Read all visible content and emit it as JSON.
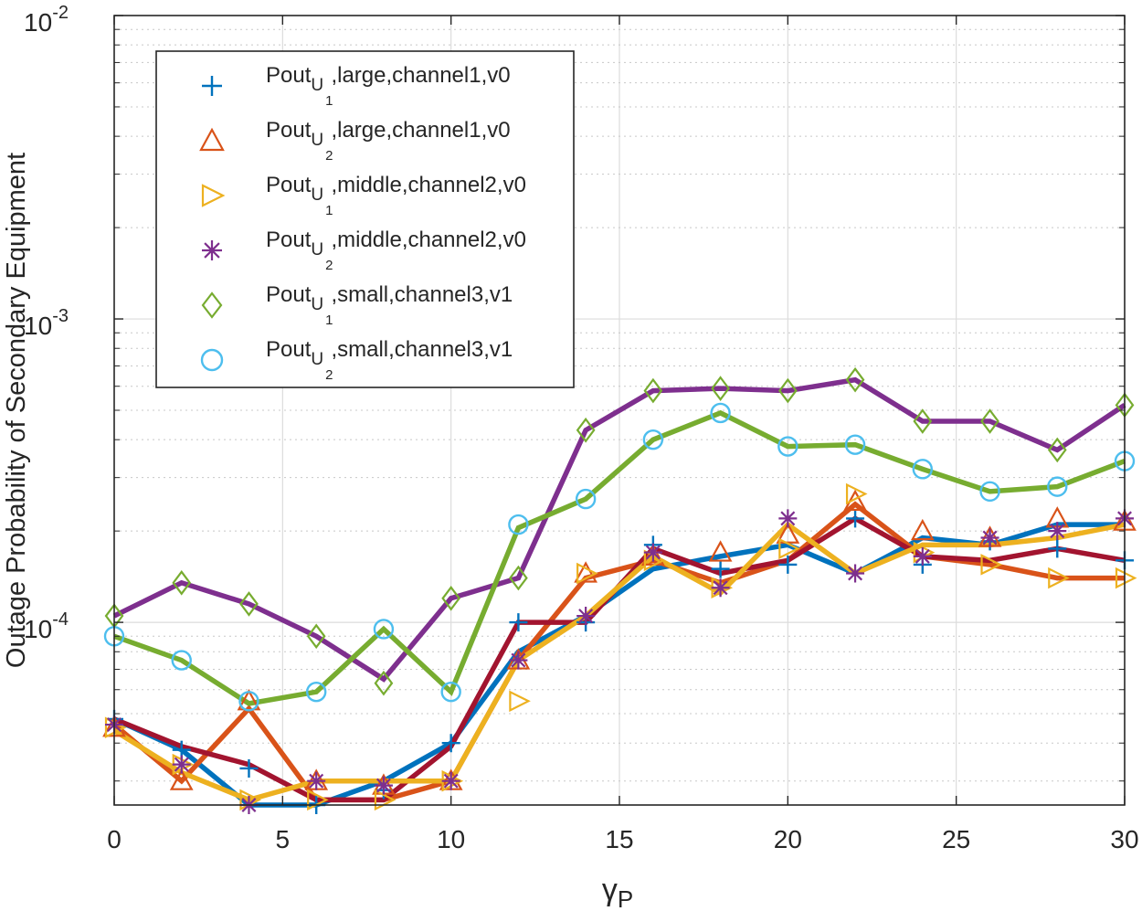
{
  "chart_data": {
    "type": "line",
    "xlabel": "γ",
    "xlabel_sub": "P",
    "ylabel": "Outage Probability of Secondary Equipment",
    "xlim": [
      0,
      30
    ],
    "ylim": [
      2.5e-05,
      0.01
    ],
    "yscale": "log",
    "grid": true,
    "legend_position": "top-left",
    "x_ticks": [
      0,
      5,
      10,
      15,
      20,
      25,
      30
    ],
    "y_ticks": [
      {
        "value": 0.01,
        "base": "10",
        "exp": "-2"
      },
      {
        "value": 0.001,
        "base": "10",
        "exp": "-3"
      },
      {
        "value": 0.0001,
        "base": "10",
        "exp": "-4"
      }
    ],
    "x": [
      0,
      2,
      4,
      6,
      8,
      10,
      12,
      14,
      16,
      18,
      20,
      22,
      24,
      26,
      28,
      30
    ],
    "series": [
      {
        "legend_prefix": "Pout",
        "legend_sub": "U",
        "legend_subsub": "1",
        "legend_suffix": ",large,channel1,v0",
        "color": "#0072BD",
        "marker": "plus",
        "values": [
          4.8e-05,
          3.8e-05,
          3.3e-05,
          2.5e-05,
          2.8e-05,
          4e-05,
          0.0001,
          0.0001,
          0.00018,
          0.00015,
          0.000155,
          0.00022,
          0.000155,
          0.000185,
          0.000175,
          0.00016
        ]
      },
      {
        "legend_prefix": "Pout",
        "legend_sub": "U",
        "legend_subsub": "2",
        "legend_suffix": ",large,channel1,v0",
        "color": "#D95319",
        "marker": "triangle",
        "values": [
          4.5e-05,
          3e-05,
          5.5e-05,
          3e-05,
          2.9e-05,
          3e-05,
          7.5e-05,
          0.000145,
          0.000165,
          0.00017,
          0.000195,
          0.00025,
          0.0002,
          0.00019,
          0.00022,
          0.000215
        ]
      },
      {
        "legend_prefix": "Pout",
        "legend_sub": "U",
        "legend_subsub": "1",
        "legend_suffix": ",middle,channel2,v0",
        "color": "#EDB120",
        "marker": "triangle-right",
        "values": [
          4.5e-05,
          3.4e-05,
          2.6e-05,
          2.6e-05,
          2.6e-05,
          3e-05,
          5.5e-05,
          0.000145,
          0.00016,
          0.00013,
          0.000175,
          0.000265,
          0.00017,
          0.000155,
          0.00014,
          0.00014
        ]
      },
      {
        "legend_prefix": "Pout",
        "legend_sub": "U",
        "legend_subsub": "2",
        "legend_suffix": ",middle,channel2,v0",
        "color": "#7E2F8E",
        "marker": "asterisk",
        "values": [
          4.6e-05,
          3.4e-05,
          2.5e-05,
          3e-05,
          2.9e-05,
          3e-05,
          7.5e-05,
          0.000105,
          0.00017,
          0.00013,
          0.00022,
          0.000145,
          0.000165,
          0.00019,
          0.0002,
          0.00022
        ]
      },
      {
        "legend_prefix": "Pout",
        "legend_sub": "U",
        "legend_subsub": "1",
        "legend_suffix": ",small,channel3,v1",
        "color": "#77AC30",
        "marker": "diamond",
        "values": [
          0.000105,
          0.000135,
          0.000115,
          9e-05,
          6.3e-05,
          0.00012,
          0.00014,
          0.00043,
          0.00058,
          0.00059,
          0.00058,
          0.00063,
          0.00046,
          0.00046,
          0.00037,
          0.00052
        ]
      },
      {
        "legend_prefix": "Pout",
        "legend_sub": "U",
        "legend_subsub": "2",
        "legend_suffix": ",small,channel3,v1",
        "color": "#4DBEEE",
        "marker": "circle",
        "values": [
          9e-05,
          7.5e-05,
          5.5e-05,
          5.9e-05,
          9.5e-05,
          5.9e-05,
          0.00021,
          0.000255,
          0.0004,
          0.00049,
          0.00038,
          0.000385,
          0.00032,
          0.00027,
          0.00028,
          0.00034
        ]
      }
    ],
    "lines": [
      {
        "color": "#0072BD",
        "values": [
          4.8e-05,
          3.8e-05,
          2.5e-05,
          2.5e-05,
          3e-05,
          4e-05,
          8e-05,
          0.000105,
          0.00015,
          0.000165,
          0.00018,
          0.000145,
          0.00019,
          0.00018,
          0.00021,
          0.00021
        ]
      },
      {
        "color": "#D95319",
        "values": [
          4.6e-05,
          3e-05,
          5.2e-05,
          2.6e-05,
          2.6e-05,
          3e-05,
          7.5e-05,
          0.00014,
          0.00016,
          0.000135,
          0.00016,
          0.000245,
          0.000165,
          0.000155,
          0.00014,
          0.00014
        ]
      },
      {
        "color": "#A2142F",
        "values": [
          4.8e-05,
          3.9e-05,
          3.4e-05,
          2.6e-05,
          2.6e-05,
          3.9e-05,
          0.0001,
          0.0001,
          0.000175,
          0.000145,
          0.00016,
          0.00022,
          0.000165,
          0.00016,
          0.000175,
          0.00016
        ]
      },
      {
        "color": "#EDB120",
        "values": [
          4.4e-05,
          3.2e-05,
          2.6e-05,
          3e-05,
          3e-05,
          3e-05,
          7.5e-05,
          0.000105,
          0.000165,
          0.000125,
          0.00021,
          0.000145,
          0.00018,
          0.00018,
          0.00019,
          0.00021
        ]
      },
      {
        "color": "#7E2F8E",
        "values": [
          0.000105,
          0.000135,
          0.000115,
          9e-05,
          6.5e-05,
          0.00012,
          0.00014,
          0.00043,
          0.00058,
          0.00059,
          0.00058,
          0.00063,
          0.00046,
          0.00046,
          0.00037,
          0.00052
        ]
      },
      {
        "color": "#77AC30",
        "values": [
          9e-05,
          7.5e-05,
          5.4e-05,
          5.9e-05,
          9.5e-05,
          5.9e-05,
          0.000205,
          0.000255,
          0.0004,
          0.00049,
          0.00038,
          0.000385,
          0.00032,
          0.00027,
          0.00028,
          0.00034
        ]
      }
    ]
  }
}
